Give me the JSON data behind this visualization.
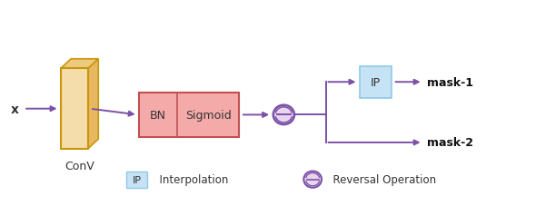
{
  "fig_width": 5.9,
  "fig_height": 2.28,
  "dpi": 100,
  "bg_color": "#ffffff",
  "arrow_color": "#7B52A6",
  "conv_face_color": "#F5DCAB",
  "conv_side_color": "#E8B860",
  "conv_top_color": "#EDCA80",
  "conv_edge_color": "#C8960A",
  "bn_sigmoid_face_color": "#F5AAAA",
  "bn_sigmoid_edge_color": "#C05050",
  "ip_face_color": "#C5E3F5",
  "ip_edge_color": "#90C8E8",
  "circle_face_color": "#EAD5F0",
  "circle_edge_color": "#7B52A6",
  "text_color": "#333333",
  "mask_color": "#111111",
  "label_fontsize": 9,
  "legend_fontsize": 8.5,
  "conv_label": "ConV",
  "bn_label": "BN",
  "sigmoid_label": "Sigmoid",
  "ip_label": "IP",
  "mask1_label": "mask-1",
  "mask2_label": "mask-2",
  "x_label": "x",
  "legend_ip_label": "IP",
  "legend_interp_label": "  Interpolation",
  "legend_reversal_label": "  Reversal Operation",
  "xlim": [
    0,
    10
  ],
  "ylim": [
    0,
    4
  ]
}
